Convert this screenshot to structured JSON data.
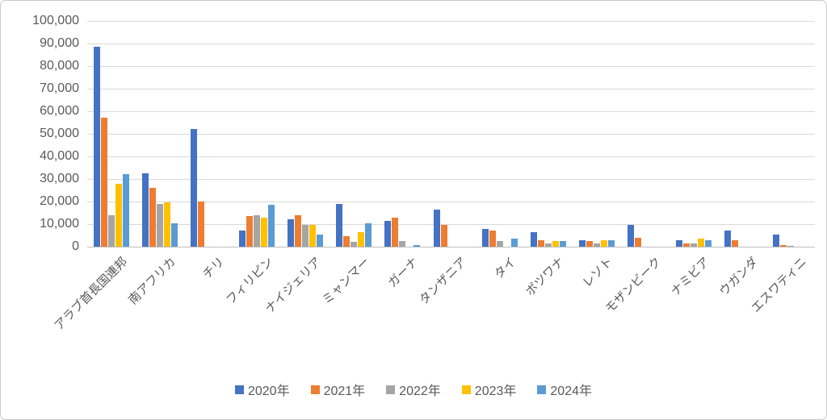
{
  "chart_data": {
    "type": "bar",
    "title": "",
    "xlabel": "",
    "ylabel": "",
    "ylim": [
      0,
      100000
    ],
    "ytick_step": 10000,
    "ytick_labels": [
      "0",
      "10,000",
      "20,000",
      "30,000",
      "40,000",
      "50,000",
      "60,000",
      "70,000",
      "80,000",
      "90,000",
      "100,000"
    ],
    "grid": true,
    "legend_position": "bottom-center",
    "categories": [
      "アラブ首長国連邦",
      "南アフリカ",
      "チリ",
      "フィリピン",
      "ナイジェリア",
      "ミャンマー",
      "ガーナ",
      "タンザニア",
      "タイ",
      "ボツワナ",
      "レソト",
      "モザンビーク",
      "ナミビア",
      "ウガンダ",
      "エスワティニ"
    ],
    "series": [
      {
        "name": "2020年",
        "color": "#4472C4",
        "values": [
          88500,
          32500,
          52000,
          7000,
          12000,
          19000,
          11500,
          16500,
          8000,
          6500,
          3000,
          9500,
          3000,
          7000,
          5500
        ]
      },
      {
        "name": "2021年",
        "color": "#ED7D31",
        "values": [
          57000,
          26000,
          20000,
          13500,
          14000,
          4500,
          13000,
          9500,
          7000,
          3000,
          2500,
          4000,
          1500,
          3000,
          800
        ]
      },
      {
        "name": "2022年",
        "color": "#A5A5A5",
        "values": [
          14000,
          19000,
          0,
          14000,
          9500,
          2000,
          2500,
          0,
          2500,
          1500,
          1500,
          0,
          1500,
          0,
          500
        ]
      },
      {
        "name": "2023年",
        "color": "#FFC000",
        "values": [
          28000,
          19500,
          0,
          13000,
          9500,
          6500,
          0,
          0,
          0,
          2500,
          3000,
          0,
          3500,
          0,
          0
        ]
      },
      {
        "name": "2024年",
        "color": "#5B9BD5",
        "values": [
          32000,
          10500,
          0,
          18500,
          5500,
          10500,
          600,
          0,
          3500,
          2500,
          3000,
          0,
          3000,
          0,
          0
        ]
      }
    ]
  },
  "colors": {
    "gridline": "#d9d9d9",
    "axis_line": "#bfbfbf",
    "tick_text": "#595959"
  }
}
